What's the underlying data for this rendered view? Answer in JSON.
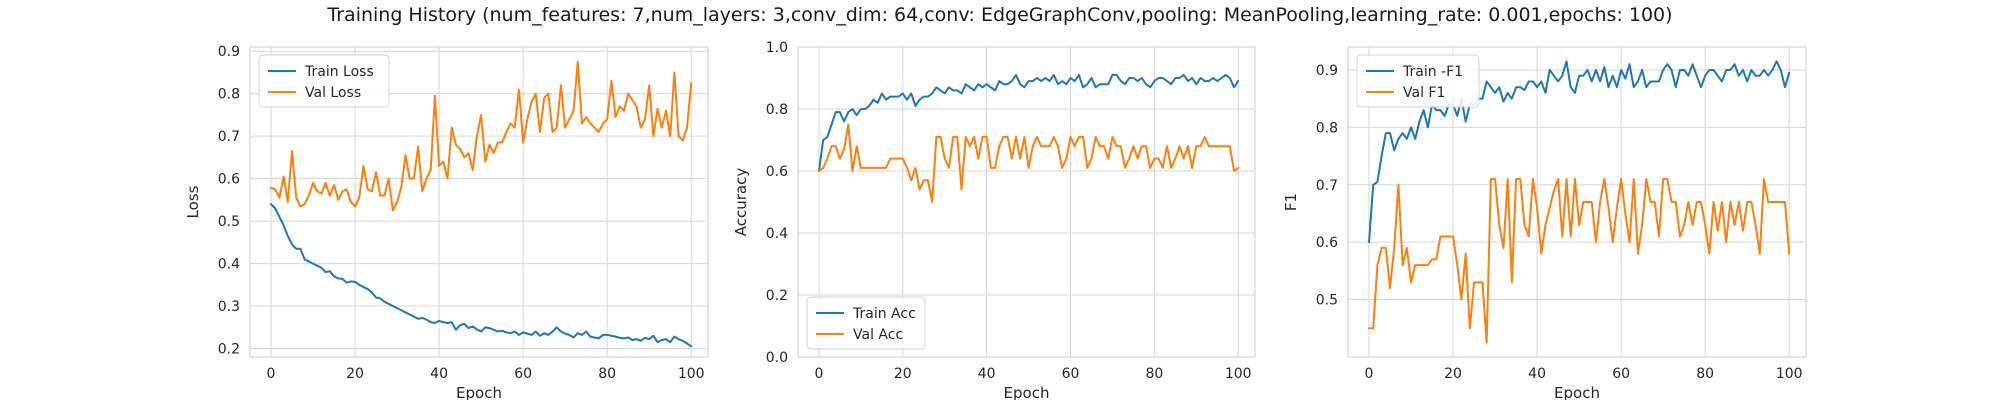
{
  "figure": {
    "suptitle": "Training History (num_features: 7,num_layers: 3,conv_dim: 64,conv: EdgeGraphConv,pooling: MeanPooling,learning_rate: 0.001,epochs: 100)"
  },
  "colors": {
    "train": "#1f77b4",
    "val": "#ff7f0e",
    "grid": "#d6d6d6",
    "axes_edge": "#cccccc"
  },
  "chart_data": [
    {
      "type": "line",
      "title": "",
      "xlabel": "Epoch",
      "ylabel": "Loss",
      "xlim": [
        -5,
        104
      ],
      "ylim": [
        0.18,
        0.91
      ],
      "xticks": [
        0,
        20,
        40,
        60,
        80,
        100
      ],
      "yticks": [
        0.2,
        0.3,
        0.4,
        0.5,
        0.6,
        0.7,
        0.8,
        0.9
      ],
      "ytick_labels": [
        "0.2",
        "0.3",
        "0.4",
        "0.5",
        "0.6",
        "0.7",
        "0.8",
        "0.9"
      ],
      "grid": true,
      "legend_position": "top-left",
      "series": [
        {
          "name": "Train Loss",
          "color": "#1f77b4",
          "values": [
            0.54,
            0.53,
            0.51,
            0.49,
            0.465,
            0.445,
            0.435,
            0.435,
            0.41,
            0.405,
            0.4,
            0.395,
            0.39,
            0.38,
            0.382,
            0.37,
            0.365,
            0.364,
            0.355,
            0.358,
            0.357,
            0.35,
            0.345,
            0.34,
            0.332,
            0.32,
            0.318,
            0.31,
            0.305,
            0.3,
            0.295,
            0.29,
            0.285,
            0.28,
            0.275,
            0.27,
            0.272,
            0.268,
            0.262,
            0.26,
            0.265,
            0.262,
            0.26,
            0.262,
            0.244,
            0.255,
            0.258,
            0.248,
            0.252,
            0.245,
            0.24,
            0.25,
            0.248,
            0.244,
            0.24,
            0.242,
            0.238,
            0.236,
            0.24,
            0.232,
            0.238,
            0.235,
            0.232,
            0.24,
            0.23,
            0.236,
            0.232,
            0.24,
            0.25,
            0.24,
            0.235,
            0.232,
            0.226,
            0.236,
            0.232,
            0.24,
            0.228,
            0.226,
            0.224,
            0.232,
            0.232,
            0.23,
            0.228,
            0.225,
            0.224,
            0.226,
            0.22,
            0.222,
            0.218,
            0.225,
            0.222,
            0.23,
            0.215,
            0.22,
            0.222,
            0.215,
            0.228,
            0.222,
            0.218,
            0.212,
            0.205
          ]
        },
        {
          "name": "Val Loss",
          "color": "#ff7f0e",
          "values": [
            0.578,
            0.575,
            0.555,
            0.605,
            0.545,
            0.665,
            0.555,
            0.535,
            0.54,
            0.56,
            0.59,
            0.57,
            0.565,
            0.59,
            0.56,
            0.585,
            0.55,
            0.57,
            0.575,
            0.545,
            0.535,
            0.555,
            0.63,
            0.575,
            0.57,
            0.615,
            0.56,
            0.56,
            0.6,
            0.525,
            0.545,
            0.58,
            0.655,
            0.6,
            0.6,
            0.675,
            0.57,
            0.6,
            0.62,
            0.795,
            0.63,
            0.64,
            0.6,
            0.72,
            0.68,
            0.67,
            0.65,
            0.66,
            0.62,
            0.7,
            0.75,
            0.64,
            0.68,
            0.66,
            0.685,
            0.685,
            0.71,
            0.73,
            0.72,
            0.81,
            0.685,
            0.74,
            0.78,
            0.8,
            0.71,
            0.79,
            0.8,
            0.71,
            0.72,
            0.82,
            0.72,
            0.74,
            0.76,
            0.875,
            0.73,
            0.745,
            0.73,
            0.72,
            0.71,
            0.73,
            0.74,
            0.83,
            0.745,
            0.77,
            0.76,
            0.8,
            0.785,
            0.77,
            0.72,
            0.74,
            0.82,
            0.7,
            0.765,
            0.72,
            0.76,
            0.7,
            0.85,
            0.7,
            0.69,
            0.72,
            0.825
          ]
        }
      ]
    },
    {
      "type": "line",
      "title": "",
      "xlabel": "Epoch",
      "ylabel": "Accuracy",
      "xlim": [
        -5,
        104
      ],
      "ylim": [
        0.0,
        1.0
      ],
      "xticks": [
        0,
        20,
        40,
        60,
        80,
        100
      ],
      "yticks": [
        0.0,
        0.2,
        0.4,
        0.6,
        0.8,
        1.0
      ],
      "ytick_labels": [
        "0.0",
        "0.2",
        "0.4",
        "0.6",
        "0.8",
        "1.0"
      ],
      "grid": true,
      "legend_position": "bottom-left",
      "series": [
        {
          "name": "Train Acc",
          "color": "#1f77b4",
          "values": [
            0.6,
            0.7,
            0.71,
            0.75,
            0.79,
            0.79,
            0.76,
            0.79,
            0.8,
            0.78,
            0.8,
            0.8,
            0.81,
            0.83,
            0.82,
            0.85,
            0.83,
            0.84,
            0.84,
            0.84,
            0.85,
            0.83,
            0.85,
            0.81,
            0.83,
            0.84,
            0.84,
            0.85,
            0.87,
            0.86,
            0.85,
            0.87,
            0.86,
            0.86,
            0.85,
            0.88,
            0.87,
            0.86,
            0.88,
            0.87,
            0.88,
            0.87,
            0.86,
            0.89,
            0.88,
            0.88,
            0.89,
            0.91,
            0.88,
            0.87,
            0.89,
            0.89,
            0.9,
            0.89,
            0.9,
            0.89,
            0.91,
            0.88,
            0.89,
            0.88,
            0.9,
            0.89,
            0.91,
            0.87,
            0.88,
            0.9,
            0.87,
            0.88,
            0.88,
            0.88,
            0.91,
            0.91,
            0.89,
            0.88,
            0.9,
            0.9,
            0.89,
            0.9,
            0.88,
            0.87,
            0.89,
            0.9,
            0.9,
            0.89,
            0.88,
            0.9,
            0.9,
            0.91,
            0.89,
            0.9,
            0.88,
            0.9,
            0.89,
            0.89,
            0.9,
            0.89,
            0.9,
            0.91,
            0.9,
            0.87,
            0.89
          ]
        },
        {
          "name": "Val Acc",
          "color": "#ff7f0e",
          "values": [
            0.6,
            0.61,
            0.64,
            0.68,
            0.68,
            0.64,
            0.67,
            0.75,
            0.6,
            0.68,
            0.61,
            0.61,
            0.61,
            0.61,
            0.61,
            0.61,
            0.61,
            0.64,
            0.64,
            0.64,
            0.64,
            0.61,
            0.57,
            0.61,
            0.54,
            0.57,
            0.57,
            0.5,
            0.71,
            0.71,
            0.64,
            0.61,
            0.71,
            0.71,
            0.54,
            0.71,
            0.68,
            0.71,
            0.64,
            0.71,
            0.71,
            0.61,
            0.61,
            0.68,
            0.71,
            0.71,
            0.64,
            0.71,
            0.64,
            0.71,
            0.61,
            0.68,
            0.71,
            0.68,
            0.68,
            0.68,
            0.71,
            0.68,
            0.61,
            0.64,
            0.71,
            0.68,
            0.71,
            0.71,
            0.61,
            0.64,
            0.71,
            0.68,
            0.68,
            0.64,
            0.71,
            0.68,
            0.68,
            0.61,
            0.64,
            0.68,
            0.64,
            0.68,
            0.68,
            0.61,
            0.64,
            0.64,
            0.61,
            0.68,
            0.61,
            0.64,
            0.68,
            0.64,
            0.68,
            0.61,
            0.68,
            0.68,
            0.71,
            0.68,
            0.68,
            0.68,
            0.68,
            0.68,
            0.68,
            0.6,
            0.61
          ]
        }
      ]
    },
    {
      "type": "line",
      "title": "",
      "xlabel": "Epoch",
      "ylabel": "F1",
      "xlim": [
        -5,
        104
      ],
      "ylim": [
        0.4,
        0.94
      ],
      "xticks": [
        0,
        20,
        40,
        60,
        80,
        100
      ],
      "yticks": [
        0.5,
        0.6,
        0.7,
        0.8,
        0.9
      ],
      "ytick_labels": [
        "0.5",
        "0.6",
        "0.7",
        "0.8",
        "0.9"
      ],
      "grid": true,
      "legend_position": "top-left",
      "series": [
        {
          "name": "Train -F1",
          "color": "#1f77b4",
          "values": [
            0.6,
            0.7,
            0.705,
            0.75,
            0.79,
            0.79,
            0.76,
            0.78,
            0.79,
            0.78,
            0.8,
            0.78,
            0.81,
            0.83,
            0.8,
            0.84,
            0.83,
            0.83,
            0.82,
            0.84,
            0.84,
            0.82,
            0.85,
            0.81,
            0.84,
            0.84,
            0.85,
            0.85,
            0.88,
            0.87,
            0.86,
            0.87,
            0.845,
            0.86,
            0.85,
            0.87,
            0.87,
            0.865,
            0.88,
            0.88,
            0.87,
            0.88,
            0.86,
            0.9,
            0.89,
            0.88,
            0.89,
            0.915,
            0.87,
            0.86,
            0.89,
            0.89,
            0.9,
            0.88,
            0.9,
            0.88,
            0.905,
            0.87,
            0.89,
            0.87,
            0.9,
            0.885,
            0.91,
            0.87,
            0.88,
            0.9,
            0.87,
            0.88,
            0.88,
            0.88,
            0.9,
            0.91,
            0.9,
            0.87,
            0.9,
            0.9,
            0.89,
            0.91,
            0.89,
            0.87,
            0.89,
            0.9,
            0.9,
            0.89,
            0.88,
            0.9,
            0.9,
            0.91,
            0.89,
            0.9,
            0.88,
            0.9,
            0.89,
            0.89,
            0.9,
            0.89,
            0.9,
            0.915,
            0.9,
            0.87,
            0.895
          ]
        },
        {
          "name": "Val F1",
          "color": "#ff7f0e",
          "values": [
            0.45,
            0.45,
            0.56,
            0.59,
            0.59,
            0.52,
            0.59,
            0.7,
            0.56,
            0.59,
            0.53,
            0.56,
            0.56,
            0.56,
            0.56,
            0.57,
            0.57,
            0.61,
            0.61,
            0.61,
            0.61,
            0.56,
            0.5,
            0.58,
            0.45,
            0.53,
            0.53,
            0.53,
            0.425,
            0.71,
            0.71,
            0.63,
            0.59,
            0.71,
            0.53,
            0.71,
            0.71,
            0.63,
            0.61,
            0.71,
            0.66,
            0.58,
            0.63,
            0.66,
            0.69,
            0.71,
            0.61,
            0.71,
            0.61,
            0.71,
            0.63,
            0.67,
            0.67,
            0.67,
            0.6,
            0.67,
            0.71,
            0.66,
            0.6,
            0.66,
            0.71,
            0.65,
            0.6,
            0.71,
            0.58,
            0.63,
            0.71,
            0.67,
            0.67,
            0.61,
            0.71,
            0.71,
            0.67,
            0.67,
            0.61,
            0.63,
            0.67,
            0.63,
            0.67,
            0.67,
            0.63,
            0.58,
            0.67,
            0.62,
            0.67,
            0.6,
            0.67,
            0.63,
            0.67,
            0.62,
            0.67,
            0.67,
            0.63,
            0.58,
            0.71,
            0.67,
            0.67,
            0.67,
            0.67,
            0.67,
            0.58
          ]
        }
      ]
    }
  ]
}
